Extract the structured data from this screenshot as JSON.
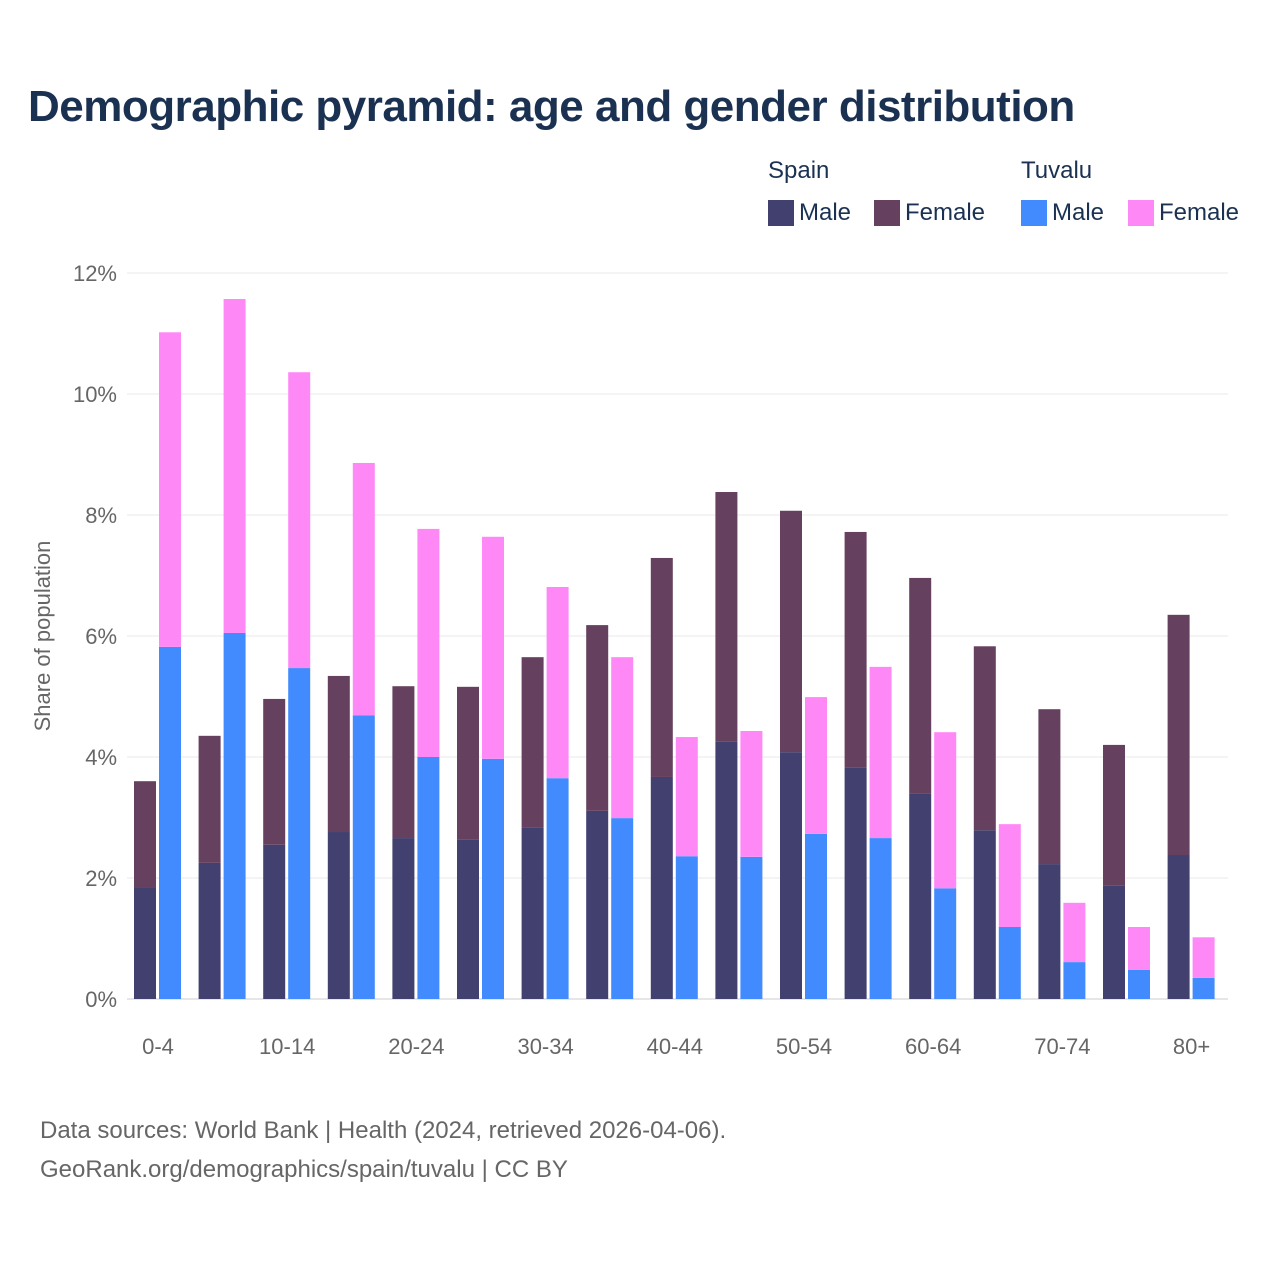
{
  "chart_data": {
    "type": "bar",
    "title": "Demographic pyramid: age and gender distribution",
    "xlabel": "",
    "ylabel": "Share of population",
    "ylim": [
      0,
      12
    ],
    "yticks": [
      "0%",
      "2%",
      "4%",
      "6%",
      "8%",
      "10%",
      "12%"
    ],
    "grid": true,
    "legend_position": "top-right",
    "stacked": true,
    "categories": [
      "0-4",
      "5-9",
      "10-14",
      "15-19",
      "20-24",
      "25-29",
      "30-34",
      "35-39",
      "40-44",
      "45-49",
      "50-54",
      "55-59",
      "60-64",
      "65-69",
      "70-74",
      "75-79",
      "80+"
    ],
    "xtick_labels": [
      "0-4",
      "10-14",
      "20-24",
      "30-34",
      "40-44",
      "50-54",
      "60-64",
      "70-74",
      "80+"
    ],
    "groups": [
      {
        "name": "Spain",
        "series": [
          {
            "name": "Male",
            "color": "#41406f",
            "values": [
              1.85,
              2.25,
              2.55,
              2.76,
              2.66,
              2.63,
              2.84,
              3.11,
              3.67,
              4.26,
              4.08,
              3.83,
              3.39,
              2.79,
              2.23,
              1.87,
              2.38
            ]
          },
          {
            "name": "Female",
            "color": "#66405f",
            "values": [
              1.75,
              2.1,
              2.41,
              2.58,
              2.51,
              2.53,
              2.81,
              3.07,
              3.62,
              4.12,
              3.99,
              3.89,
              3.57,
              3.04,
              2.56,
              2.33,
              3.97
            ]
          }
        ]
      },
      {
        "name": "Tuvalu",
        "series": [
          {
            "name": "Male",
            "color": "#428bff",
            "values": [
              5.82,
              6.05,
              5.47,
              4.69,
              4.0,
              3.97,
              3.65,
              2.99,
              2.36,
              2.35,
              2.73,
              2.66,
              1.83,
              1.19,
              0.61,
              0.48,
              0.35
            ]
          },
          {
            "name": "Female",
            "color": "#ff88f7",
            "values": [
              5.2,
              5.52,
              4.89,
              4.17,
              3.77,
              3.67,
              3.16,
              2.66,
              1.97,
              2.08,
              2.26,
              2.83,
              2.58,
              1.7,
              0.98,
              0.71,
              0.67
            ]
          }
        ]
      }
    ]
  },
  "source_line1": "Data sources: World Bank | Health (2024, retrieved 2026-04-06).",
  "source_line2": "GeoRank.org/demographics/spain/tuvalu | CC BY"
}
